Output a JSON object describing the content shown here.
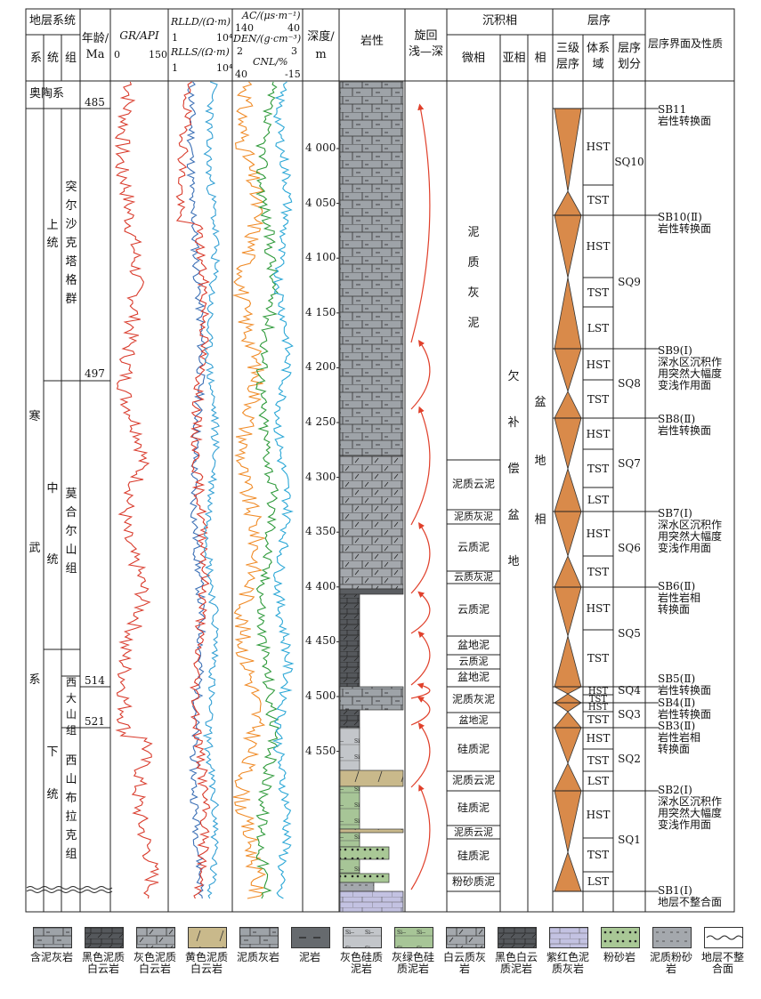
{
  "header": {
    "strat_system": "地层系统",
    "sys": "系",
    "series": "统",
    "group": "组",
    "age": "年龄/",
    "age_unit": "Ma",
    "gr_label": "GR/API",
    "gr_min": "0",
    "gr_max": "150",
    "rlld_label": "RLLD/(Ω·m)",
    "rlld_min": "1",
    "rlld_max": "10⁴",
    "rlls_label": "RLLS/(Ω·m)",
    "rlls_min": "1",
    "rlls_max": "10⁴",
    "ac_label": "AC/(μs·m⁻¹)",
    "ac_min": "140",
    "ac_max": "40",
    "den_label": "DEN/(g·cm⁻³)",
    "den_min": "2",
    "den_max": "3",
    "cnl_label": "CNL/%",
    "cnl_min": "40",
    "cnl_max": "-15",
    "depth": "深度/",
    "depth_unit": "m",
    "lithology": "岩性",
    "cycle": "旋回",
    "cycle_sub": "浅—深",
    "facies": "沉积相",
    "microfacies": "微相",
    "subfacies": "亚相",
    "facies_col": "相",
    "sequence": "层序",
    "third_order": "三级",
    "third_order2": "层序",
    "tract": "体系",
    "tract2": "域",
    "seq_div": "层序",
    "seq_div2": "划分",
    "boundary": "层序界面及性质"
  },
  "strat": {
    "ordovician": "奥陶系",
    "cambrian": "寒武系",
    "upper": "上统",
    "middle": "中统",
    "lower": "下统",
    "tuer": "突尔沙克塔格群",
    "mohe": "莫合尔山组",
    "xida": "西大山组",
    "xishan": "西山布拉克组",
    "ages": [
      "485",
      "497",
      "514",
      "521"
    ]
  },
  "depth_ticks": [
    "4 000",
    "4 050",
    "4 100",
    "4 150",
    "4 200",
    "4 250",
    "4 300",
    "4 350",
    "4 400",
    "4 450",
    "4 500",
    "4 550"
  ],
  "microfacies": [
    "泥质灰泥",
    "泥质云泥",
    "泥质灰泥",
    "云质泥",
    "云质灰泥",
    "云质泥",
    "盆地泥",
    "云质泥",
    "盆地泥",
    "泥质灰泥",
    "盆地泥",
    "硅质泥",
    "泥质云泥",
    "硅质泥",
    "泥质云泥",
    "硅质泥",
    "粉砂质泥"
  ],
  "subfacies": "欠补偿盆地",
  "facies": "盆地相",
  "tracts": [
    "HST",
    "TST",
    "HST",
    "TST",
    "LST",
    "HST",
    "TST",
    "HST",
    "TST",
    "LST",
    "HST",
    "TST",
    "HST",
    "TST",
    "HST",
    "TST",
    "HST",
    "TST",
    "HST",
    "TST",
    "LST",
    "HST",
    "TST",
    "LST"
  ],
  "sequences": [
    "SQ10",
    "SQ9",
    "SQ8",
    "SQ7",
    "SQ6",
    "SQ5",
    "SQ4",
    "SQ3",
    "SQ2",
    "SQ1"
  ],
  "boundaries": [
    {
      "code": "SB11",
      "desc": [
        "岩性转换面"
      ]
    },
    {
      "code": "SB10(Ⅱ)",
      "desc": [
        "岩性转换面"
      ]
    },
    {
      "code": "SB9(Ⅰ)",
      "desc": [
        "深水区沉积作",
        "用突然大幅度",
        "变浅作用面"
      ]
    },
    {
      "code": "SB8(Ⅱ)",
      "desc": [
        "岩性转换面"
      ]
    },
    {
      "code": "SB7(Ⅰ)",
      "desc": [
        "深水区沉积作",
        "用突然大幅度",
        "变浅作用面"
      ]
    },
    {
      "code": "SB6(Ⅱ)",
      "desc": [
        "岩性岩相",
        "转换面"
      ]
    },
    {
      "code": "SB5(Ⅱ)",
      "desc": [
        "岩性转换面"
      ]
    },
    {
      "code": "SB4(Ⅱ)",
      "desc": [
        "岩性转换面"
      ]
    },
    {
      "code": "SB3(Ⅱ)",
      "desc": [
        "岩性岩相",
        "转换面"
      ]
    },
    {
      "code": "SB2(Ⅰ)",
      "desc": [
        "深水区沉积作",
        "用突然大幅度",
        "变浅作用面"
      ]
    },
    {
      "code": "SB1(Ⅰ)",
      "desc": [
        "地层不整合面"
      ]
    }
  ],
  "legend": [
    {
      "label": "含泥灰岩",
      "color": "#9ea3a8"
    },
    {
      "label": "黑色泥质白云岩",
      "color": "#5a5d61"
    },
    {
      "label": "灰色泥质白云岩",
      "color": "#a4a8ad"
    },
    {
      "label": "黄色泥质白云岩",
      "color": "#c9b98b"
    },
    {
      "label": "泥质灰岩",
      "color": "#9ea3a8"
    },
    {
      "label": "泥岩",
      "color": "#666a6e"
    },
    {
      "label": "灰色硅质泥岩",
      "color": "#c3c6ca"
    },
    {
      "label": "灰绿色硅质泥岩",
      "color": "#a7c597"
    },
    {
      "label": "白云质灰岩",
      "color": "#a7abaf"
    },
    {
      "label": "黑色白云质泥岩",
      "color": "#5e6165"
    },
    {
      "label": "紫红色泥质灰岩",
      "color": "#c3c2e2"
    },
    {
      "label": "粉砂岩",
      "color": "#a9c896"
    },
    {
      "label": "泥质粉砂岩",
      "color": "#a4a8ad"
    },
    {
      "label": "地层不整合面",
      "color": "#ffffff"
    }
  ]
}
